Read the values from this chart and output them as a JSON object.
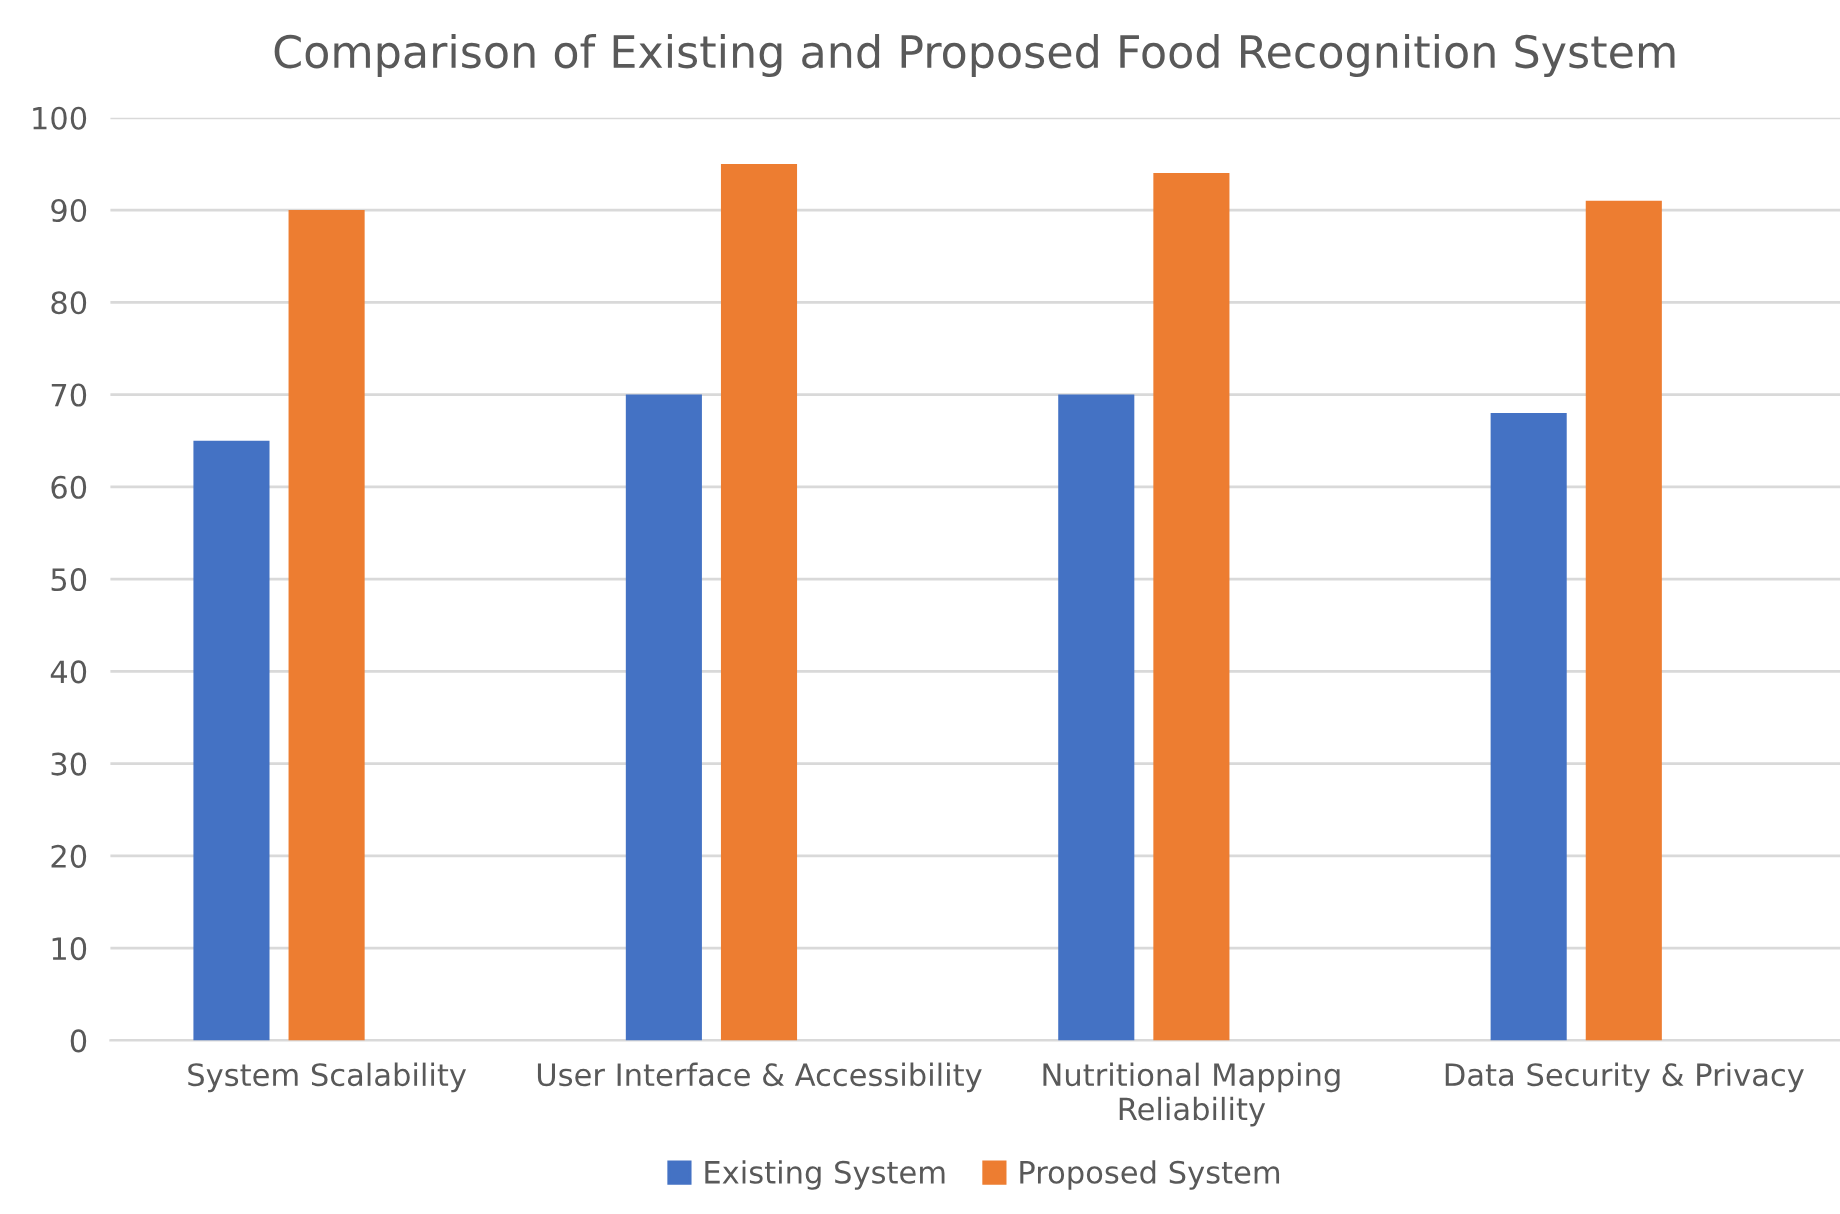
{
  "chart_data": {
    "type": "bar",
    "title": "Comparison of Existing and Proposed Food Recognition System",
    "categories": [
      "System Scalability",
      "User Interface & Accessibility",
      "Nutritional Mapping\nReliability",
      "Data Security & Privacy"
    ],
    "series": [
      {
        "name": "Existing System",
        "color": "#4472c4",
        "values": [
          65,
          70,
          70,
          68
        ]
      },
      {
        "name": "Proposed System",
        "color": "#ed7d31",
        "values": [
          90,
          95,
          94,
          91
        ]
      }
    ],
    "ylim": [
      0,
      100
    ],
    "yticks": [
      0,
      10,
      20,
      30,
      40,
      50,
      60,
      70,
      80,
      90,
      100
    ],
    "grid": "y",
    "legend": "bottom"
  }
}
